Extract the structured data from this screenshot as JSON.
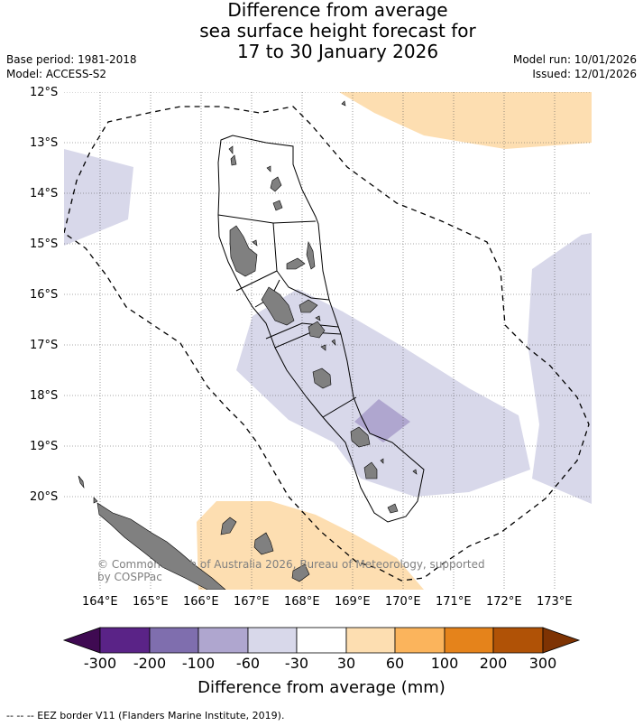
{
  "title": {
    "line1": "Difference from average",
    "line2": "sea surface height forecast for",
    "line3": "17 to 30 January 2026"
  },
  "info": {
    "base_period": "Base period: 1981-2018",
    "model": "Model: ACCESS-S2",
    "model_run": "Model run: 10/01/2026",
    "issued": "Issued: 12/01/2026"
  },
  "map": {
    "lat_labels": [
      "12°S",
      "13°S",
      "14°S",
      "15°S",
      "16°S",
      "17°S",
      "18°S",
      "19°S",
      "20°S"
    ],
    "lon_labels": [
      "164°E",
      "165°E",
      "166°E",
      "167°E",
      "168°E",
      "169°E",
      "170°E",
      "171°E",
      "172°E",
      "173°E"
    ],
    "credit_line1": "© Commonwealth of Australia 2026, Bureau of Meteorology, supported",
    "credit_line2": "by COSPPac"
  },
  "colorbar": {
    "colors": [
      "#3f0a52",
      "#5a2387",
      "#7f6eae",
      "#afa6cf",
      "#d8d8ea",
      "#ffffff",
      "#fddeb1",
      "#fbb45c",
      "#e5831b",
      "#b05206",
      "#7e3303"
    ],
    "tick_labels": [
      "-300",
      "-200",
      "-100",
      "-60",
      "-30",
      "30",
      "60",
      "100",
      "200",
      "300"
    ],
    "title": "Difference from average (mm)"
  },
  "footnote": "--  --  -- EEZ border V11 (Flanders Marine Institute, 2019)."
}
